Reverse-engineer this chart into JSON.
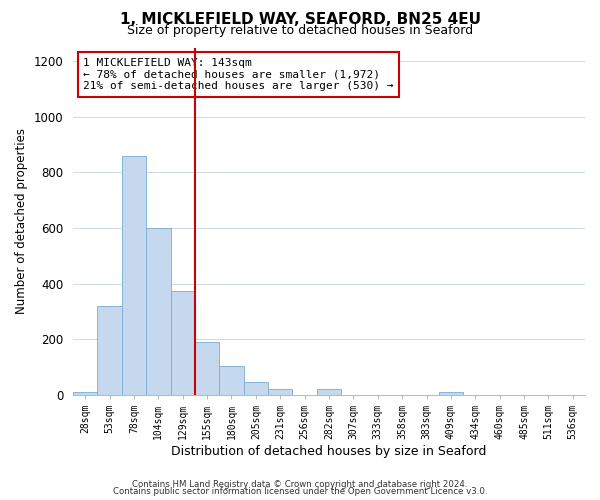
{
  "title": "1, MICKLEFIELD WAY, SEAFORD, BN25 4EU",
  "subtitle": "Size of property relative to detached houses in Seaford",
  "xlabel": "Distribution of detached houses by size in Seaford",
  "ylabel": "Number of detached properties",
  "bar_labels": [
    "28sqm",
    "53sqm",
    "78sqm",
    "104sqm",
    "129sqm",
    "155sqm",
    "180sqm",
    "205sqm",
    "231sqm",
    "256sqm",
    "282sqm",
    "307sqm",
    "333sqm",
    "358sqm",
    "383sqm",
    "409sqm",
    "434sqm",
    "460sqm",
    "485sqm",
    "511sqm",
    "536sqm"
  ],
  "bar_values": [
    10,
    318,
    860,
    600,
    375,
    190,
    105,
    45,
    20,
    0,
    20,
    0,
    0,
    0,
    0,
    10,
    0,
    0,
    0,
    0,
    0
  ],
  "bar_color": "#c5d8ed",
  "bar_edge_color": "#7aadd4",
  "ylim": [
    0,
    1250
  ],
  "yticks": [
    0,
    200,
    400,
    600,
    800,
    1000,
    1200
  ],
  "vline_color": "#cc0000",
  "annotation_title": "1 MICKLEFIELD WAY: 143sqm",
  "annotation_line1": "← 78% of detached houses are smaller (1,972)",
  "annotation_line2": "21% of semi-detached houses are larger (530) →",
  "annotation_box_color": "#ffffff",
  "annotation_box_edge": "#cc0000",
  "footer1": "Contains HM Land Registry data © Crown copyright and database right 2024.",
  "footer2": "Contains public sector information licensed under the Open Government Licence v3.0.",
  "background_color": "#ffffff",
  "grid_color": "#ccd9e8"
}
